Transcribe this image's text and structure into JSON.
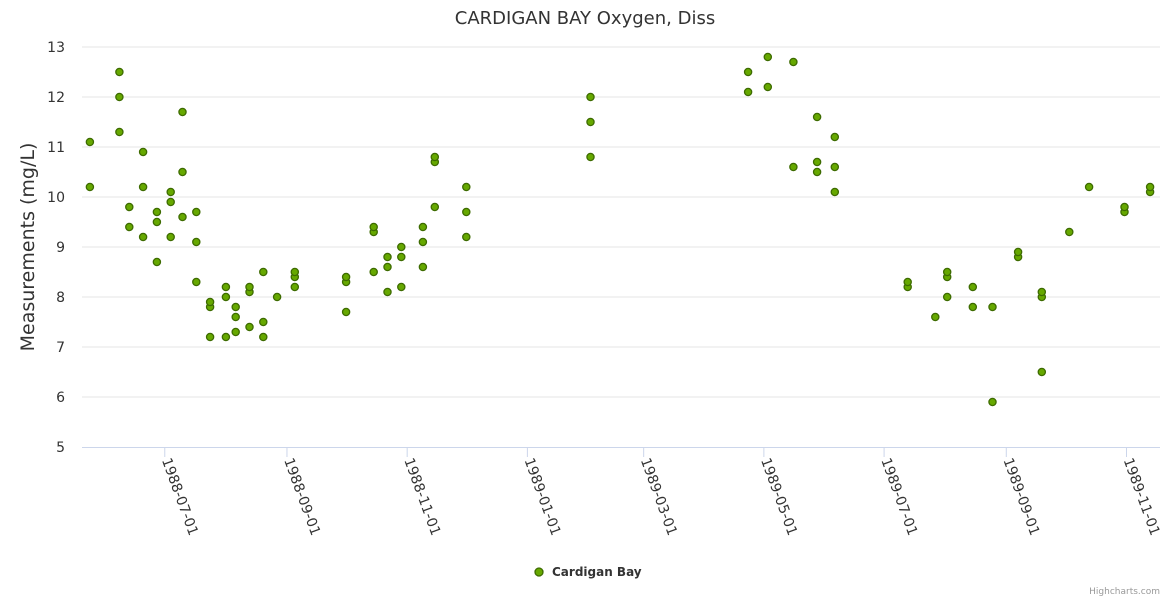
{
  "chart_data": {
    "type": "scatter",
    "title": "CARDIGAN BAY Oxygen, Diss",
    "ylabel": "Measurements (mg/L)",
    "xlabel": "",
    "ylim": [
      5,
      13
    ],
    "xlim": [
      "1988-05-20",
      "1989-11-18"
    ],
    "y_ticks": [
      5,
      6,
      7,
      8,
      9,
      10,
      11,
      12,
      13
    ],
    "x_ticks": [
      "1988-07-01",
      "1988-09-01",
      "1988-11-01",
      "1989-01-01",
      "1989-03-01",
      "1989-05-01",
      "1989-07-01",
      "1989-09-01",
      "1989-11-01"
    ],
    "grid": "horizontal",
    "legend_position": "bottom-center",
    "credits": "Highcharts.com",
    "colors": {
      "marker_fill": "#66a800",
      "marker_stroke": "#3d6b00",
      "grid": "#e6e6e6",
      "axis": "#ccd6eb"
    },
    "series": [
      {
        "name": "Cardigan Bay",
        "points": [
          {
            "x": "1988-05-24",
            "y": 10.2
          },
          {
            "x": "1988-05-24",
            "y": 11.1
          },
          {
            "x": "1988-06-08",
            "y": 11.3
          },
          {
            "x": "1988-06-08",
            "y": 12.0
          },
          {
            "x": "1988-06-08",
            "y": 12.5
          },
          {
            "x": "1988-06-13",
            "y": 9.4
          },
          {
            "x": "1988-06-13",
            "y": 9.8
          },
          {
            "x": "1988-06-20",
            "y": 9.2
          },
          {
            "x": "1988-06-20",
            "y": 10.2
          },
          {
            "x": "1988-06-20",
            "y": 10.9
          },
          {
            "x": "1988-06-27",
            "y": 8.7
          },
          {
            "x": "1988-06-27",
            "y": 9.5
          },
          {
            "x": "1988-06-27",
            "y": 9.7
          },
          {
            "x": "1988-07-04",
            "y": 9.2
          },
          {
            "x": "1988-07-04",
            "y": 9.9
          },
          {
            "x": "1988-07-04",
            "y": 10.1
          },
          {
            "x": "1988-07-10",
            "y": 9.6
          },
          {
            "x": "1988-07-10",
            "y": 10.5
          },
          {
            "x": "1988-07-10",
            "y": 11.7
          },
          {
            "x": "1988-07-17",
            "y": 8.3
          },
          {
            "x": "1988-07-17",
            "y": 9.1
          },
          {
            "x": "1988-07-17",
            "y": 9.7
          },
          {
            "x": "1988-07-24",
            "y": 7.2
          },
          {
            "x": "1988-07-24",
            "y": 7.8
          },
          {
            "x": "1988-07-24",
            "y": 7.9
          },
          {
            "x": "1988-08-01",
            "y": 7.2
          },
          {
            "x": "1988-08-01",
            "y": 8.0
          },
          {
            "x": "1988-08-01",
            "y": 8.2
          },
          {
            "x": "1988-08-06",
            "y": 7.3
          },
          {
            "x": "1988-08-06",
            "y": 7.6
          },
          {
            "x": "1988-08-06",
            "y": 7.8
          },
          {
            "x": "1988-08-13",
            "y": 7.4
          },
          {
            "x": "1988-08-13",
            "y": 8.1
          },
          {
            "x": "1988-08-13",
            "y": 8.2
          },
          {
            "x": "1988-08-20",
            "y": 7.2
          },
          {
            "x": "1988-08-20",
            "y": 7.5
          },
          {
            "x": "1988-08-20",
            "y": 8.5
          },
          {
            "x": "1988-08-27",
            "y": 8.0
          },
          {
            "x": "1988-09-05",
            "y": 8.2
          },
          {
            "x": "1988-09-05",
            "y": 8.4
          },
          {
            "x": "1988-09-05",
            "y": 8.5
          },
          {
            "x": "1988-10-01",
            "y": 7.7
          },
          {
            "x": "1988-10-01",
            "y": 8.3
          },
          {
            "x": "1988-10-01",
            "y": 8.4
          },
          {
            "x": "1988-10-15",
            "y": 8.5
          },
          {
            "x": "1988-10-15",
            "y": 9.3
          },
          {
            "x": "1988-10-15",
            "y": 9.4
          },
          {
            "x": "1988-10-22",
            "y": 8.1
          },
          {
            "x": "1988-10-22",
            "y": 8.6
          },
          {
            "x": "1988-10-22",
            "y": 8.8
          },
          {
            "x": "1988-10-29",
            "y": 8.2
          },
          {
            "x": "1988-10-29",
            "y": 8.8
          },
          {
            "x": "1988-10-29",
            "y": 9.0
          },
          {
            "x": "1988-11-09",
            "y": 8.6
          },
          {
            "x": "1988-11-09",
            "y": 9.1
          },
          {
            "x": "1988-11-09",
            "y": 9.4
          },
          {
            "x": "1988-11-15",
            "y": 9.8
          },
          {
            "x": "1988-11-15",
            "y": 10.7
          },
          {
            "x": "1988-11-15",
            "y": 10.8
          },
          {
            "x": "1988-12-01",
            "y": 9.2
          },
          {
            "x": "1988-12-01",
            "y": 9.7
          },
          {
            "x": "1988-12-01",
            "y": 10.2
          },
          {
            "x": "1989-02-02",
            "y": 10.8
          },
          {
            "x": "1989-02-02",
            "y": 11.5
          },
          {
            "x": "1989-02-02",
            "y": 12.0
          },
          {
            "x": "1989-04-23",
            "y": 12.1
          },
          {
            "x": "1989-04-23",
            "y": 12.5
          },
          {
            "x": "1989-05-03",
            "y": 12.2
          },
          {
            "x": "1989-05-03",
            "y": 12.8
          },
          {
            "x": "1989-05-16",
            "y": 10.6
          },
          {
            "x": "1989-05-16",
            "y": 12.7
          },
          {
            "x": "1989-05-28",
            "y": 10.5
          },
          {
            "x": "1989-05-28",
            "y": 10.7
          },
          {
            "x": "1989-05-28",
            "y": 11.6
          },
          {
            "x": "1989-06-06",
            "y": 10.1
          },
          {
            "x": "1989-06-06",
            "y": 10.6
          },
          {
            "x": "1989-06-06",
            "y": 11.2
          },
          {
            "x": "1989-07-13",
            "y": 8.2
          },
          {
            "x": "1989-07-13",
            "y": 8.3
          },
          {
            "x": "1989-07-27",
            "y": 7.6
          },
          {
            "x": "1989-08-02",
            "y": 8.0
          },
          {
            "x": "1989-08-02",
            "y": 8.4
          },
          {
            "x": "1989-08-02",
            "y": 8.5
          },
          {
            "x": "1989-08-15",
            "y": 7.8
          },
          {
            "x": "1989-08-15",
            "y": 8.2
          },
          {
            "x": "1989-08-25",
            "y": 5.9
          },
          {
            "x": "1989-08-25",
            "y": 7.8
          },
          {
            "x": "1989-09-07",
            "y": 8.8
          },
          {
            "x": "1989-09-07",
            "y": 8.9
          },
          {
            "x": "1989-09-19",
            "y": 6.5
          },
          {
            "x": "1989-09-19",
            "y": 8.0
          },
          {
            "x": "1989-09-19",
            "y": 8.1
          },
          {
            "x": "1989-10-03",
            "y": 9.3
          },
          {
            "x": "1989-10-13",
            "y": 10.2
          },
          {
            "x": "1989-10-31",
            "y": 9.7
          },
          {
            "x": "1989-10-31",
            "y": 9.8
          },
          {
            "x": "1989-11-13",
            "y": 10.1
          },
          {
            "x": "1989-11-13",
            "y": 10.2
          }
        ]
      }
    ]
  }
}
